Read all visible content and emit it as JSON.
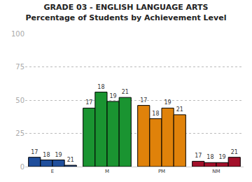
{
  "chart_data": {
    "type": "bar",
    "title": "GRADE 03 - ENGLISH LANGUAGE ARTS",
    "subtitle": "Percentage of Students by Achievement Level",
    "categories": [
      "E",
      "M",
      "PM",
      "NM"
    ],
    "series": [
      {
        "name": "17",
        "values": [
          7,
          44,
          46,
          4
        ],
        "colors": [
          "#1f4e9c",
          "#1a9431",
          "#e0820a",
          "#a3102a"
        ]
      },
      {
        "name": "18",
        "values": [
          5,
          56,
          36,
          3
        ],
        "colors": [
          "#1f4e9c",
          "#1a9431",
          "#e0820a",
          "#a3102a"
        ]
      },
      {
        "name": "19",
        "values": [
          5,
          49,
          44,
          3
        ],
        "colors": [
          "#1f4e9c",
          "#1a9431",
          "#e0820a",
          "#a3102a"
        ]
      },
      {
        "name": "21",
        "values": [
          1,
          52,
          39,
          7
        ],
        "colors": [
          "#1f4e9c",
          "#1a9431",
          "#e0820a",
          "#a3102a"
        ]
      }
    ],
    "ylim": [
      0,
      100
    ],
    "yticks": [
      0,
      25,
      50,
      75,
      100
    ],
    "grid": true
  }
}
